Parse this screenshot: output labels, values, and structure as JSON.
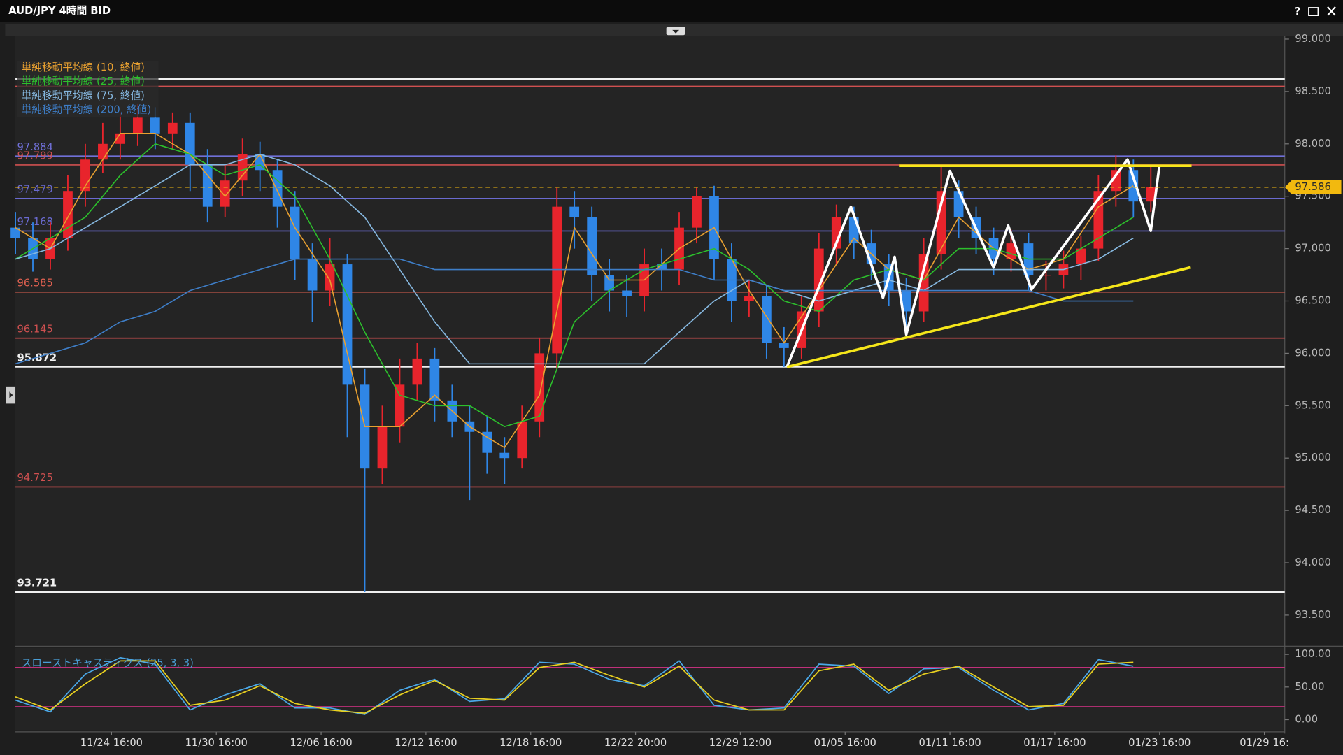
{
  "window": {
    "title": "AUD/JPY 4時間 BID",
    "help": "?"
  },
  "chart_data": [
    {
      "type": "candlestick",
      "ylim": [
        93.22,
        99.03
      ],
      "xlim": [
        0,
        436
      ],
      "yticks": [
        {
          "value": 93.5,
          "label": "93.500"
        },
        {
          "value": 94,
          "label": "94.000"
        },
        {
          "value": 94.5,
          "label": "94.500"
        },
        {
          "value": 95,
          "label": "95.000"
        },
        {
          "value": 95.5,
          "label": "95.500"
        },
        {
          "value": 96,
          "label": "96.000"
        },
        {
          "value": 96.5,
          "label": "96.500"
        },
        {
          "value": 97,
          "label": "97.000"
        },
        {
          "value": 97.5,
          "label": "97.500"
        },
        {
          "value": 98,
          "label": "98.000"
        },
        {
          "value": 98.5,
          "label": "98.500"
        },
        {
          "value": 99,
          "label": "99.000"
        }
      ],
      "up_color": "#e8242c",
      "down_color": "#2f86e6",
      "x": [
        0,
        6,
        12,
        18,
        24,
        30,
        36,
        42,
        48,
        54,
        60,
        66,
        72,
        78,
        84,
        90,
        96,
        102,
        108,
        114,
        120,
        126,
        132,
        138,
        144,
        150,
        156,
        162,
        168,
        174,
        180,
        186,
        192,
        198,
        204,
        210,
        216,
        222,
        228,
        234,
        240,
        246,
        252,
        258,
        264,
        270,
        276,
        282,
        288,
        294,
        300,
        306,
        312,
        318,
        324,
        330,
        336,
        342,
        348,
        354,
        360,
        366,
        372,
        378,
        384,
        390
      ],
      "open": [
        97.2,
        97.1,
        96.9,
        97.1,
        97.55,
        97.85,
        98.0,
        98.1,
        98.25,
        98.1,
        98.2,
        97.8,
        97.4,
        97.65,
        97.9,
        97.75,
        97.4,
        96.9,
        96.6,
        96.85,
        95.7,
        94.9,
        95.3,
        95.7,
        95.95,
        95.55,
        95.35,
        95.25,
        95.05,
        95.0,
        95.35,
        96.0,
        97.4,
        97.3,
        96.75,
        96.6,
        96.55,
        96.85,
        96.8,
        97.2,
        97.5,
        96.9,
        96.5,
        96.55,
        96.1,
        96.05,
        96.4,
        97.0,
        97.3,
        97.05,
        96.85,
        96.6,
        96.4,
        96.95,
        97.55,
        97.3,
        97.1,
        96.9,
        97.05,
        96.75,
        96.75,
        96.85,
        97.0,
        97.55,
        97.75,
        97.45
      ],
      "high": [
        97.35,
        97.25,
        97.25,
        97.7,
        98.0,
        98.2,
        98.3,
        98.38,
        98.35,
        98.3,
        98.3,
        97.95,
        97.8,
        98.05,
        98.02,
        97.85,
        97.55,
        97.05,
        97.1,
        96.95,
        95.85,
        95.5,
        95.95,
        96.1,
        96.05,
        95.7,
        95.5,
        95.4,
        95.2,
        95.5,
        96.15,
        97.58,
        97.55,
        97.4,
        96.9,
        96.75,
        97.0,
        97.0,
        97.35,
        97.58,
        97.6,
        97.05,
        96.7,
        96.65,
        96.25,
        96.55,
        97.15,
        97.42,
        97.4,
        97.18,
        96.95,
        96.72,
        97.1,
        97.78,
        97.65,
        97.4,
        97.2,
        97.18,
        97.15,
        96.88,
        96.98,
        97.12,
        97.7,
        97.89,
        97.85,
        97.8
      ],
      "low": [
        96.95,
        96.78,
        96.8,
        96.98,
        97.4,
        97.72,
        97.85,
        97.98,
        97.95,
        97.95,
        97.55,
        97.25,
        97.3,
        97.5,
        97.55,
        97.2,
        96.7,
        96.3,
        96.45,
        95.2,
        93.72,
        94.75,
        95.15,
        95.55,
        95.35,
        95.2,
        94.6,
        94.85,
        94.75,
        94.9,
        95.2,
        95.85,
        97.0,
        96.5,
        96.4,
        96.35,
        96.4,
        96.6,
        96.65,
        97.05,
        96.7,
        96.3,
        96.35,
        95.95,
        95.87,
        95.95,
        96.25,
        96.85,
        96.9,
        96.7,
        96.45,
        96.2,
        96.3,
        96.8,
        97.1,
        96.95,
        96.75,
        96.78,
        96.6,
        96.6,
        96.62,
        96.7,
        96.88,
        97.4,
        97.3,
        97.35
      ],
      "close": [
        97.1,
        96.9,
        97.1,
        97.55,
        97.85,
        98.0,
        98.1,
        98.25,
        98.1,
        98.2,
        97.8,
        97.4,
        97.65,
        97.9,
        97.75,
        97.4,
        96.9,
        96.6,
        96.85,
        95.7,
        94.9,
        95.3,
        95.7,
        95.95,
        95.55,
        95.35,
        95.25,
        95.05,
        95.0,
        95.35,
        96.0,
        97.4,
        97.3,
        96.75,
        96.6,
        96.55,
        96.85,
        96.8,
        97.2,
        97.5,
        96.9,
        96.5,
        96.55,
        96.1,
        96.05,
        96.4,
        97.0,
        97.3,
        97.05,
        96.85,
        96.6,
        96.4,
        96.95,
        97.55,
        97.3,
        97.1,
        96.9,
        97.05,
        96.75,
        96.75,
        96.85,
        97.0,
        97.55,
        97.75,
        97.45,
        97.586
      ],
      "series": [
        {
          "name": "単純移動平均線 (10, 終値)",
          "color": "#e8a030",
          "x": [
            0,
            12,
            24,
            36,
            48,
            60,
            72,
            84,
            96,
            108,
            120,
            132,
            144,
            156,
            168,
            180,
            192,
            204,
            216,
            228,
            240,
            252,
            264,
            276,
            288,
            300,
            312,
            324,
            336,
            348,
            360,
            372,
            384
          ],
          "values": [
            97.2,
            97.0,
            97.6,
            98.1,
            98.1,
            97.9,
            97.5,
            97.9,
            97.2,
            96.7,
            95.3,
            95.3,
            95.6,
            95.3,
            95.1,
            95.6,
            97.2,
            96.7,
            96.7,
            97.0,
            97.2,
            96.6,
            96.1,
            96.6,
            97.1,
            96.8,
            96.7,
            97.3,
            97.0,
            96.8,
            96.9,
            97.4,
            97.6
          ]
        },
        {
          "name": "単純移動平均線 (25, 終値)",
          "color": "#2cc02c",
          "x": [
            0,
            12,
            24,
            36,
            48,
            60,
            72,
            84,
            96,
            108,
            120,
            132,
            144,
            156,
            168,
            180,
            192,
            204,
            216,
            228,
            240,
            252,
            264,
            276,
            288,
            300,
            312,
            324,
            336,
            348,
            360,
            372,
            384
          ],
          "values": [
            96.9,
            97.1,
            97.3,
            97.7,
            98.0,
            97.9,
            97.7,
            97.8,
            97.5,
            96.9,
            96.2,
            95.6,
            95.5,
            95.5,
            95.3,
            95.4,
            96.3,
            96.6,
            96.8,
            96.9,
            97.0,
            96.8,
            96.5,
            96.4,
            96.7,
            96.8,
            96.7,
            97.0,
            97.0,
            96.9,
            96.9,
            97.1,
            97.3
          ]
        },
        {
          "name": "単純移動平均線 (75, 終値)",
          "color": "#86b8e0",
          "x": [
            0,
            12,
            24,
            36,
            48,
            60,
            72,
            84,
            96,
            108,
            120,
            132,
            144,
            156,
            168,
            180,
            192,
            204,
            216,
            228,
            240,
            252,
            264,
            276,
            288,
            300,
            312,
            324,
            336,
            348,
            360,
            372,
            384
          ],
          "values": [
            96.9,
            97.0,
            97.2,
            97.4,
            97.6,
            97.8,
            97.8,
            97.9,
            97.8,
            97.6,
            97.3,
            96.8,
            96.3,
            95.9,
            95.9,
            95.9,
            95.9,
            95.9,
            95.9,
            96.2,
            96.5,
            96.7,
            96.6,
            96.5,
            96.6,
            96.7,
            96.6,
            96.8,
            96.8,
            96.8,
            96.8,
            96.9,
            97.1
          ]
        },
        {
          "name": "単純移動平均線 (200, 終値)",
          "color": "#3e7ec8",
          "x": [
            0,
            12,
            24,
            36,
            48,
            60,
            72,
            84,
            96,
            108,
            120,
            132,
            144,
            156,
            168,
            180,
            192,
            204,
            216,
            228,
            240,
            252,
            264,
            276,
            288,
            300,
            312,
            324,
            336,
            348,
            360,
            372,
            384
          ],
          "values": [
            95.9,
            96.0,
            96.1,
            96.3,
            96.4,
            96.6,
            96.7,
            96.8,
            96.9,
            96.9,
            96.9,
            96.9,
            96.8,
            96.8,
            96.8,
            96.8,
            96.8,
            96.8,
            96.8,
            96.8,
            96.7,
            96.7,
            96.6,
            96.6,
            96.6,
            96.6,
            96.6,
            96.6,
            96.6,
            96.6,
            96.5,
            96.5,
            96.5
          ]
        }
      ],
      "levels": [
        {
          "value": 98.62,
          "color": "#f0f0f0",
          "show_label": false
        },
        {
          "value": 98.55,
          "color": "#d05050",
          "show_label": false
        },
        {
          "value": 97.884,
          "color": "#7070d8",
          "show_label": true
        },
        {
          "value": 97.799,
          "color": "#d05050",
          "show_label": true
        },
        {
          "value": 97.479,
          "color": "#6a6ad0",
          "show_label": true
        },
        {
          "value": 97.168,
          "color": "#6a6ad0",
          "show_label": true
        },
        {
          "value": 96.585,
          "color": "#e06050",
          "show_label": true
        },
        {
          "value": 96.145,
          "color": "#d05050",
          "show_label": true
        },
        {
          "value": 95.872,
          "color": "#f0f0f0",
          "show_label": true
        },
        {
          "value": 94.725,
          "color": "#d05050",
          "show_label": true
        },
        {
          "value": 93.721,
          "color": "#f0f0f0",
          "show_label": true
        }
      ],
      "last_price": 97.586,
      "last_price_color": "#f2b90f",
      "drawings": [
        {
          "color": "#ffffff",
          "x": [
            265,
            287,
            298,
            302,
            306,
            321,
            336,
            341,
            349,
            382,
            390,
            393
          ],
          "y": [
            95.87,
            97.4,
            96.53,
            96.92,
            96.18,
            97.74,
            96.82,
            97.22,
            96.61,
            97.85,
            97.17,
            97.8
          ]
        },
        {
          "color": "#f5e61a",
          "x": [
            303.5,
            404
          ],
          "y": [
            97.79,
            97.79
          ]
        },
        {
          "color": "#f5e61a",
          "x": [
            265,
            403.5
          ],
          "y": [
            95.87,
            96.82
          ]
        }
      ]
    },
    {
      "type": "line",
      "title": "スローストキャスティクス (25, 3, 3)",
      "ylim": [
        -16,
        110
      ],
      "xlim": [
        0,
        436
      ],
      "yticks": [
        {
          "value": 0,
          "label": "0.00"
        },
        {
          "value": 50,
          "label": "50.00"
        },
        {
          "value": 100,
          "label": "100.00"
        }
      ],
      "xticks": [
        {
          "value": 33,
          "label": "11/24 16:00"
        },
        {
          "value": 69,
          "label": "11/30 16:00"
        },
        {
          "value": 105,
          "label": "12/06 16:00"
        },
        {
          "value": 141,
          "label": "12/12 16:00"
        },
        {
          "value": 177,
          "label": "12/18 16:00"
        },
        {
          "value": 213,
          "label": "12/22 20:00"
        },
        {
          "value": 249,
          "label": "12/29 12:00"
        },
        {
          "value": 285,
          "label": "01/05 16:00"
        },
        {
          "value": 321,
          "label": "01/11 16:00"
        },
        {
          "value": 357,
          "label": "01/17 16:00"
        },
        {
          "value": 393,
          "label": "01/23 16:00"
        },
        {
          "value": 429,
          "label": "01/29 16:"
        }
      ],
      "levels": [
        80,
        20
      ],
      "level_color": "#c0307a",
      "series": [
        {
          "color": "#4aa8e8",
          "x": [
            0,
            12,
            24,
            36,
            48,
            60,
            72,
            84,
            96,
            108,
            120,
            132,
            144,
            156,
            168,
            180,
            192,
            204,
            216,
            228,
            240,
            252,
            264,
            276,
            288,
            300,
            312,
            324,
            336,
            348,
            360,
            372,
            384
          ],
          "values": [
            30,
            12,
            70,
            95,
            85,
            15,
            38,
            55,
            18,
            18,
            8,
            45,
            62,
            28,
            32,
            88,
            85,
            62,
            52,
            90,
            22,
            15,
            18,
            85,
            82,
            40,
            78,
            80,
            45,
            15,
            25,
            92,
            82
          ]
        },
        {
          "color": "#e8d020",
          "x": [
            0,
            12,
            24,
            36,
            48,
            60,
            72,
            84,
            96,
            108,
            120,
            132,
            144,
            156,
            168,
            180,
            192,
            204,
            216,
            228,
            240,
            252,
            264,
            276,
            288,
            300,
            312,
            324,
            336,
            348,
            360,
            372,
            384
          ],
          "values": [
            35,
            15,
            55,
            90,
            90,
            22,
            30,
            52,
            25,
            15,
            10,
            38,
            60,
            33,
            30,
            80,
            88,
            68,
            50,
            82,
            30,
            15,
            15,
            75,
            85,
            45,
            70,
            82,
            50,
            20,
            22,
            85,
            88
          ]
        }
      ]
    }
  ]
}
